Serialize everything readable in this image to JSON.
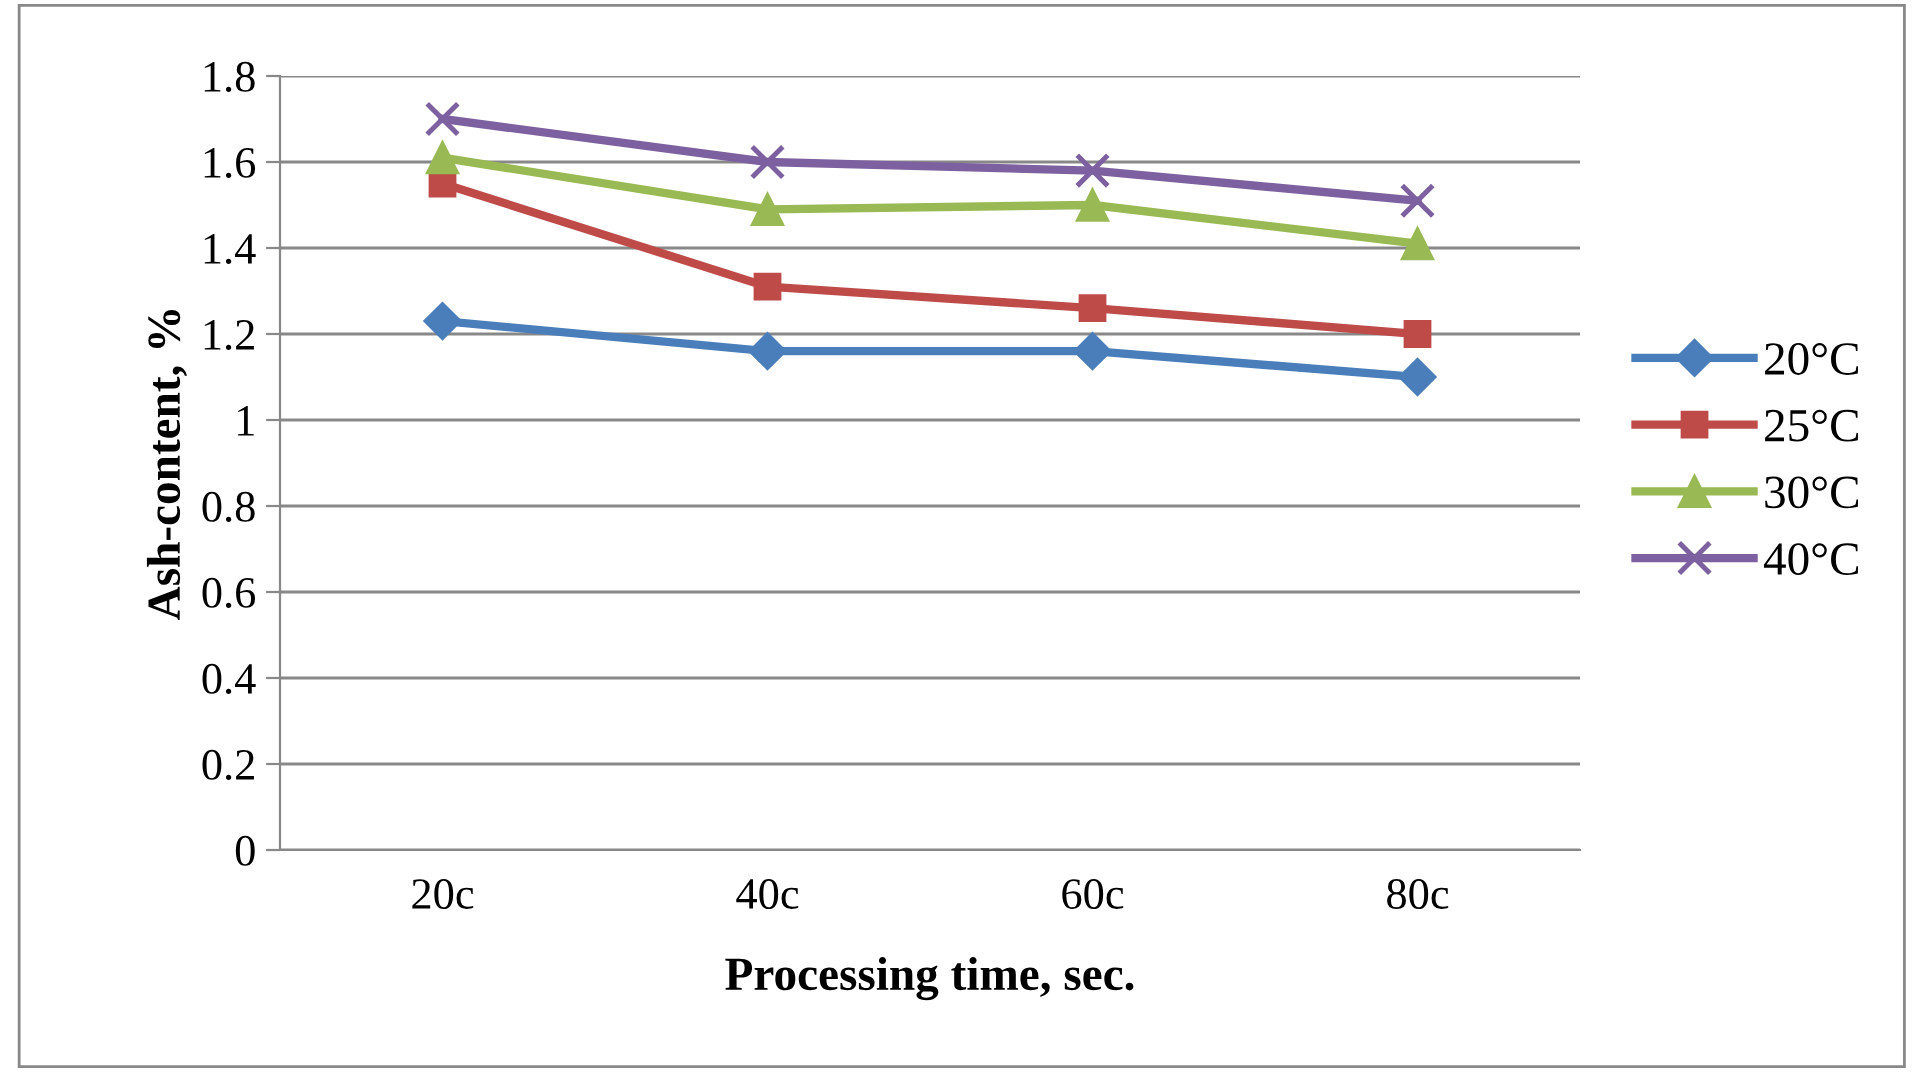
{
  "chart_data": {
    "type": "line",
    "xlabel": "Processing time, sec.",
    "ylabel": "Ash-content, %",
    "categories": [
      "20c",
      "40c",
      "60c",
      "80c"
    ],
    "series": [
      {
        "name": "20°C",
        "color": "#4a7ebb",
        "marker": "diamond",
        "values": [
          1.23,
          1.16,
          1.16,
          1.1
        ]
      },
      {
        "name": "25°C",
        "color": "#be4b48",
        "marker": "square",
        "values": [
          1.55,
          1.31,
          1.26,
          1.2
        ]
      },
      {
        "name": "30°C",
        "color": "#98b954",
        "marker": "triangle",
        "values": [
          1.61,
          1.49,
          1.5,
          1.41
        ]
      },
      {
        "name": "40°C",
        "color": "#7d60a0",
        "marker": "cross",
        "values": [
          1.7,
          1.6,
          1.58,
          1.51
        ]
      }
    ],
    "ylim": [
      0,
      1.8
    ],
    "yticks": [
      0,
      0.2,
      0.4,
      0.6,
      0.8,
      1,
      1.2,
      1.4,
      1.6,
      1.8
    ],
    "grid": "y",
    "legend": "right",
    "line_style": "solid"
  }
}
